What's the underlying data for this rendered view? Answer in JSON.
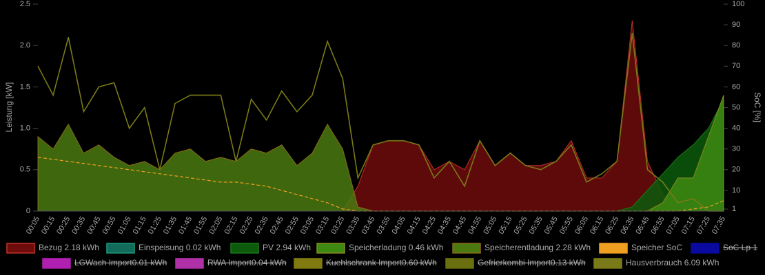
{
  "chart_data": {
    "type": "area",
    "ylabel": "Leistung [kW]",
    "y2label": "SoC [%]",
    "categories": [
      "00:05",
      "00:15",
      "00:25",
      "00:35",
      "00:45",
      "00:55",
      "01:05",
      "01:15",
      "01:25",
      "01:35",
      "01:45",
      "01:55",
      "02:05",
      "02:15",
      "02:25",
      "02:35",
      "02:45",
      "02:55",
      "03:05",
      "03:15",
      "03:25",
      "03:35",
      "03:45",
      "03:55",
      "04:05",
      "04:15",
      "04:25",
      "04:35",
      "04:45",
      "04:55",
      "05:05",
      "05:15",
      "05:25",
      "05:35",
      "05:45",
      "05:55",
      "06:05",
      "06:15",
      "06:25",
      "06:35",
      "06:45",
      "06:55",
      "07:05",
      "07:15",
      "07:25",
      "07:35"
    ],
    "ylim": [
      0,
      2.5
    ],
    "yticks": [
      0,
      0.5,
      {
        "value": 1,
        "label": "1.0"
      },
      1.5,
      {
        "value": 2,
        "label": "2.0"
      },
      2.5
    ],
    "y2lim": [
      0,
      100
    ],
    "y2ticks": [
      1,
      10,
      20,
      30,
      40,
      50,
      60,
      70,
      80,
      90,
      100
    ],
    "series": [
      {
        "name": "Bezug 2.18 kWh",
        "type": "area",
        "color": "#6e0c0c",
        "line": "#c0302a",
        "values": [
          0,
          0,
          0,
          0,
          0,
          0,
          0,
          0,
          0,
          0,
          0,
          0,
          0,
          0,
          0,
          0,
          0,
          0,
          0,
          0,
          0,
          0.3,
          0.8,
          0.85,
          0.85,
          0.8,
          0.5,
          0.6,
          0.5,
          0.85,
          0.55,
          0.7,
          0.55,
          0.55,
          0.6,
          0.85,
          0.4,
          0.4,
          0.6,
          2.3,
          0.6,
          0.2,
          0,
          0,
          0,
          0
        ]
      },
      {
        "name": "Einspeisung 0.02 kWh",
        "type": "area",
        "color": "#136b5a",
        "line": "#1a9a80",
        "values": [
          0,
          0,
          0,
          0,
          0,
          0,
          0,
          0,
          0,
          0,
          0,
          0,
          0,
          0,
          0,
          0,
          0,
          0,
          0,
          0,
          0,
          0,
          0,
          0,
          0,
          0,
          0,
          0,
          0,
          0,
          0,
          0,
          0,
          0,
          0,
          0,
          0,
          0,
          0,
          0,
          0,
          0,
          0,
          0,
          0,
          0
        ]
      },
      {
        "name": "PV 2.94 kWh",
        "type": "area",
        "color": "#0c5a0c",
        "line": "#1a7a1a",
        "values": [
          0,
          0,
          0,
          0,
          0,
          0,
          0,
          0,
          0,
          0,
          0,
          0,
          0,
          0,
          0,
          0,
          0,
          0,
          0,
          0,
          0,
          0,
          0,
          0,
          0,
          0,
          0,
          0,
          0,
          0,
          0,
          0,
          0,
          0,
          0,
          0,
          0,
          0,
          0,
          0.05,
          0.25,
          0.45,
          0.65,
          0.8,
          1.0,
          1.35
        ]
      },
      {
        "name": "Speicherladung 0.46 kWh",
        "type": "area",
        "color": "#3d8a12",
        "line": "#8a8a20",
        "values": [
          0,
          0,
          0,
          0,
          0,
          0,
          0,
          0,
          0,
          0,
          0,
          0,
          0,
          0,
          0,
          0,
          0,
          0,
          0,
          0,
          0,
          0,
          0,
          0,
          0,
          0,
          0,
          0,
          0,
          0,
          0,
          0,
          0,
          0,
          0,
          0,
          0,
          0,
          0,
          0,
          0,
          0.1,
          0.4,
          0.4,
          0.9,
          1.4
        ]
      },
      {
        "name": "Speicherentladung 2.28 kWh",
        "type": "area",
        "color": "#4a7a10",
        "line": "#8a6a18",
        "values": [
          0.9,
          0.75,
          1.05,
          0.7,
          0.8,
          0.65,
          0.55,
          0.6,
          0.5,
          0.7,
          0.75,
          0.6,
          0.65,
          0.6,
          0.75,
          0.7,
          0.8,
          0.55,
          0.7,
          1.05,
          0.75,
          0.05,
          0,
          0,
          0,
          0,
          0,
          0,
          0,
          0,
          0,
          0,
          0,
          0,
          0,
          0,
          0,
          0,
          0,
          0,
          0,
          0,
          0,
          0,
          0,
          0
        ]
      },
      {
        "name": "Speicher SoC",
        "type": "line",
        "axis": "y2",
        "color": "#f0a020",
        "dashed": true,
        "values": [
          26,
          25,
          24,
          23,
          22,
          21,
          20,
          19,
          18,
          17,
          16,
          15,
          14,
          14,
          13,
          12,
          10,
          8,
          6,
          4,
          1,
          0,
          0,
          0,
          0,
          0,
          0,
          0,
          0,
          0,
          0,
          0,
          0,
          0,
          0,
          0,
          0,
          0,
          0,
          0,
          0,
          0,
          0,
          1,
          2,
          5
        ]
      },
      {
        "name": "SoC Lp 1",
        "type": "line",
        "axis": "y2",
        "color": "#0a0aa0",
        "hidden": true
      },
      {
        "name": "LGWach Import0.01 kWh",
        "type": "line",
        "color": "#b020b0",
        "hidden": true
      },
      {
        "name": "RWA Import0.04 kWh",
        "type": "line",
        "color": "#b030a8",
        "hidden": true
      },
      {
        "name": "Kuehlschrank Import0.60 kWh",
        "type": "line",
        "color": "#807a10",
        "hidden": true
      },
      {
        "name": "Gefrierkombi Import0.13 kWh",
        "type": "line",
        "color": "#6a7010",
        "hidden": true
      },
      {
        "name": "Hausverbrauch 6.09 kWh",
        "type": "line",
        "color": "#7a7a18",
        "values": [
          1.75,
          1.4,
          2.1,
          1.2,
          1.5,
          1.55,
          1.0,
          1.25,
          0.5,
          1.3,
          1.4,
          1.4,
          1.4,
          0.6,
          1.35,
          1.1,
          1.45,
          1.2,
          1.4,
          2.05,
          1.6,
          0.4,
          0.8,
          0.85,
          0.85,
          0.8,
          0.4,
          0.6,
          0.3,
          0.85,
          0.55,
          0.7,
          0.55,
          0.5,
          0.6,
          0.8,
          0.35,
          0.45,
          0.6,
          2.15,
          0.5,
          0.35,
          0.1,
          0.15,
          0,
          0
        ]
      }
    ]
  }
}
